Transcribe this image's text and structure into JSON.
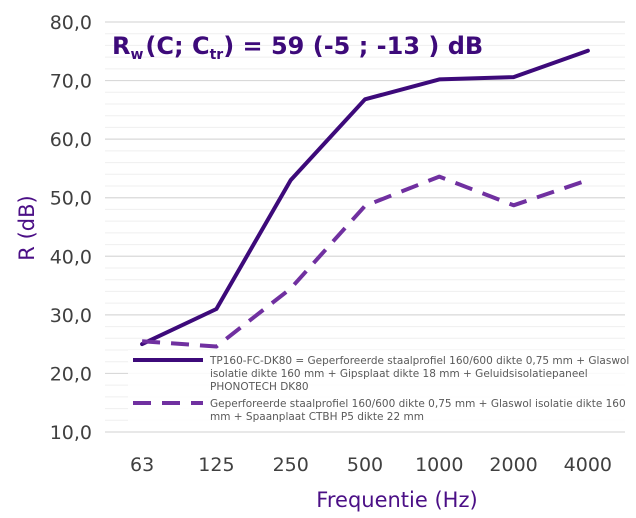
{
  "chart_data": {
    "type": "line",
    "categories": [
      "63",
      "125",
      "250",
      "500",
      "1000",
      "2000",
      "4000"
    ],
    "xlabel": "Frequentie (Hz)",
    "ylabel": "R (dB)",
    "ylim": [
      10,
      80
    ],
    "yticks": [
      "10,0",
      "20,0",
      "30,0",
      "40,0",
      "50,0",
      "60,0",
      "70,0",
      "80,0"
    ],
    "grid": "horizontal major and minor lines",
    "legend_position": "lower-left inside plot",
    "annotation": {
      "prefix": "R",
      "prefix_sub": "w",
      "open": "(C; C",
      "ctr_sub": "tr",
      "rest": ") = 59 (-5 ; -13 ) dB"
    },
    "series": [
      {
        "name_lines": [
          "TP160-FC-DK80 = Geperforeerde staalprofiel 160/600 dikte 0,75 mm + Glaswol",
          "isolatie dikte 160 mm + Gipsplaat dikte 18 mm + Geluidsisolatiepaneel",
          "PHONOTECH DK80"
        ],
        "values": [
          25.0,
          31.0,
          53.0,
          66.8,
          70.2,
          70.6,
          75.1
        ],
        "style": "solid",
        "color": "#3d0a7a"
      },
      {
        "name_lines": [
          "Geperforeerde staalprofiel 160/600 dikte 0,75 mm + Glaswol isolatie dikte 160",
          "mm + Spaanplaat CTBH P5 dikte 22 mm"
        ],
        "values": [
          25.5,
          24.6,
          34.5,
          48.6,
          53.6,
          48.7,
          53.0
        ],
        "style": "dashed",
        "color": "#7030a0"
      }
    ]
  }
}
